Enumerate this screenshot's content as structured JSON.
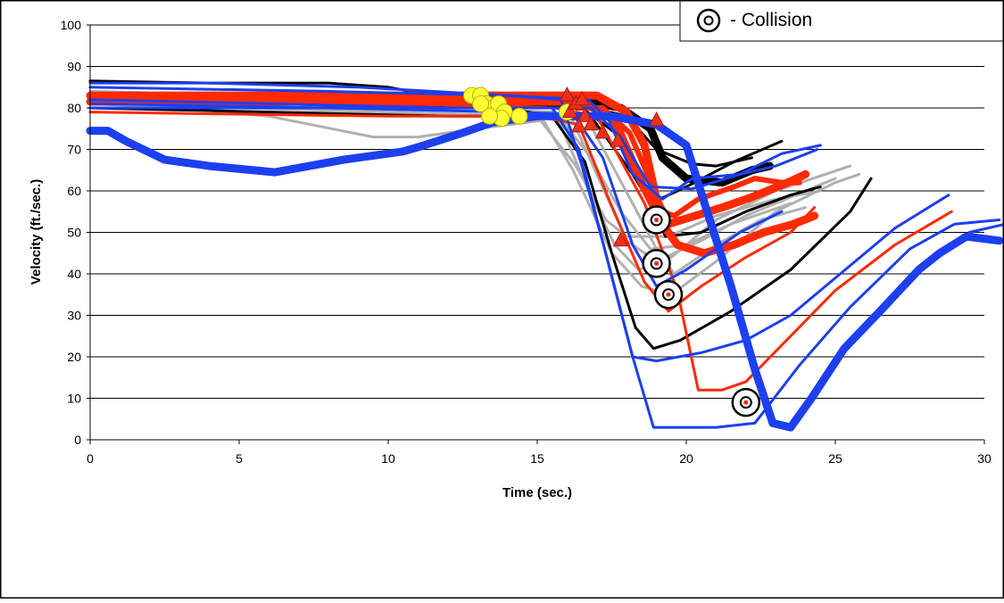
{
  "chart_data": {
    "type": "line",
    "title": "",
    "xlabel": "Time (sec.)",
    "ylabel": "Velocity (ft./sec.)",
    "xlim": [
      0,
      30
    ],
    "ylim": [
      0,
      100
    ],
    "xticks": [
      "0",
      "5",
      "10",
      "15",
      "20",
      "25",
      "30"
    ],
    "yticks": [
      "0",
      "10",
      "20",
      "30",
      "40",
      "50",
      "60",
      "70",
      "80",
      "90",
      "100"
    ],
    "grid": "horizontal",
    "legend": {
      "position": "top-right",
      "entries": [
        {
          "symbol": "bullseye",
          "label": "- Collision"
        }
      ]
    },
    "colors": {
      "blue": "#1c3ff0",
      "red": "#ff2a00",
      "black": "#000000",
      "gray": "#b0b0b0",
      "yellow": "#ffff33",
      "triangle": "#e8321e"
    },
    "series": [
      {
        "color": "gray",
        "width": 3,
        "points": [
          [
            0,
            81
          ],
          [
            3,
            80
          ],
          [
            6,
            78
          ],
          [
            9.5,
            73
          ],
          [
            11,
            73
          ],
          [
            13,
            75
          ],
          [
            15.2,
            77
          ],
          [
            16.2,
            65
          ],
          [
            17.5,
            45
          ],
          [
            18.5,
            37
          ],
          [
            19.5,
            35
          ],
          [
            21,
            43
          ],
          [
            23,
            55
          ],
          [
            25,
            62
          ],
          [
            25.8,
            64
          ]
        ]
      },
      {
        "color": "gray",
        "width": 3,
        "points": [
          [
            0,
            83
          ],
          [
            4,
            82
          ],
          [
            8,
            81
          ],
          [
            12,
            80
          ],
          [
            15.6,
            79
          ],
          [
            16.6,
            62
          ],
          [
            17.6,
            47
          ],
          [
            18.4,
            41
          ],
          [
            19.5,
            44
          ],
          [
            21,
            53
          ],
          [
            23,
            60
          ],
          [
            25.5,
            66
          ]
        ]
      },
      {
        "color": "gray",
        "width": 3,
        "points": [
          [
            0,
            82
          ],
          [
            6,
            81
          ],
          [
            12,
            80
          ],
          [
            16,
            80
          ],
          [
            17,
            64
          ],
          [
            18,
            48
          ],
          [
            19,
            43
          ],
          [
            20.5,
            48
          ],
          [
            22,
            54
          ],
          [
            24,
            60
          ],
          [
            25,
            63
          ]
        ]
      },
      {
        "color": "gray",
        "width": 3,
        "points": [
          [
            0,
            80
          ],
          [
            5,
            80
          ],
          [
            10,
            79
          ],
          [
            15,
            78
          ],
          [
            16.3,
            66
          ],
          [
            17.3,
            53
          ],
          [
            18,
            49
          ],
          [
            19.4,
            49
          ],
          [
            21,
            54
          ],
          [
            23,
            58
          ],
          [
            24.5,
            60
          ]
        ]
      },
      {
        "color": "gray",
        "width": 3,
        "points": [
          [
            0,
            84
          ],
          [
            6,
            83
          ],
          [
            11,
            82
          ],
          [
            15.5,
            80
          ],
          [
            16.8,
            68
          ],
          [
            17.8,
            55
          ],
          [
            18.8,
            46
          ],
          [
            20,
            47
          ],
          [
            21.5,
            52
          ],
          [
            23.5,
            57
          ]
        ]
      },
      {
        "color": "gray",
        "width": 3,
        "points": [
          [
            0,
            81
          ],
          [
            8,
            80
          ],
          [
            14,
            79
          ],
          [
            16.7,
            77
          ],
          [
            18.2,
            57
          ],
          [
            19,
            46
          ],
          [
            19.6,
            40
          ],
          [
            21,
            47
          ],
          [
            22.5,
            53
          ],
          [
            24,
            56
          ]
        ]
      },
      {
        "color": "black",
        "width": 3,
        "points": [
          [
            0,
            86.5
          ],
          [
            4,
            86
          ],
          [
            8,
            86
          ],
          [
            10,
            85
          ],
          [
            15.5,
            78
          ],
          [
            16.6,
            67
          ],
          [
            17.5,
            45
          ],
          [
            18.3,
            27
          ],
          [
            18.9,
            22
          ],
          [
            19.8,
            24
          ],
          [
            21.5,
            31
          ],
          [
            23.5,
            41
          ],
          [
            25.5,
            55
          ],
          [
            26.2,
            63
          ]
        ]
      },
      {
        "color": "black",
        "width": 3,
        "points": [
          [
            0,
            82
          ],
          [
            6,
            81
          ],
          [
            12,
            80
          ],
          [
            16.5,
            80
          ],
          [
            17.8,
            73
          ],
          [
            18.8,
            58
          ],
          [
            19.3,
            49
          ],
          [
            20.5,
            50
          ],
          [
            22,
            55
          ],
          [
            23.5,
            59
          ],
          [
            24.5,
            61
          ]
        ]
      },
      {
        "color": "black",
        "width": 3,
        "points": [
          [
            0,
            80
          ],
          [
            6,
            79
          ],
          [
            12,
            78
          ],
          [
            16.8,
            78
          ],
          [
            18.2,
            64
          ],
          [
            18.8,
            57
          ],
          [
            20,
            61
          ],
          [
            21.6,
            67
          ],
          [
            23.2,
            72
          ]
        ]
      },
      {
        "color": "black",
        "width": 9,
        "points": [
          [
            10.5,
            82.5
          ],
          [
            14,
            82
          ],
          [
            16.5,
            82
          ],
          [
            17.8,
            80
          ],
          [
            18.8,
            75
          ],
          [
            19.2,
            68
          ],
          [
            20,
            63
          ],
          [
            21.2,
            62
          ],
          [
            22.2,
            65
          ],
          [
            22.8,
            66
          ]
        ]
      },
      {
        "color": "black",
        "width": 3,
        "points": [
          [
            10.5,
            80.5
          ],
          [
            14,
            80.5
          ],
          [
            16.6,
            80.5
          ],
          [
            18,
            78
          ],
          [
            19,
            70
          ],
          [
            20.2,
            66.5
          ],
          [
            21,
            66
          ],
          [
            22.2,
            68
          ]
        ]
      },
      {
        "color": "red",
        "width": 3,
        "points": [
          [
            0,
            79
          ],
          [
            5,
            78.5
          ],
          [
            10,
            78
          ],
          [
            15,
            78
          ],
          [
            16.4,
            76
          ],
          [
            17.4,
            58
          ],
          [
            18.6,
            38
          ],
          [
            19.4,
            31
          ],
          [
            20.5,
            37
          ],
          [
            22,
            44
          ],
          [
            23.5,
            50
          ],
          [
            24.3,
            56
          ]
        ]
      },
      {
        "color": "red",
        "width": 3,
        "points": [
          [
            0,
            83
          ],
          [
            5,
            82
          ],
          [
            10,
            81
          ],
          [
            15.6,
            80
          ],
          [
            17,
            78
          ],
          [
            18.6,
            57
          ],
          [
            19.7,
            36
          ],
          [
            20.4,
            12
          ],
          [
            21.2,
            12
          ],
          [
            22,
            14
          ],
          [
            23.5,
            25
          ],
          [
            25,
            36
          ],
          [
            27,
            47
          ],
          [
            28.9,
            55
          ]
        ]
      },
      {
        "color": "red",
        "width": 9,
        "points": [
          [
            0,
            83
          ],
          [
            8,
            83
          ],
          [
            14,
            83
          ],
          [
            17,
            83
          ],
          [
            18,
            79
          ],
          [
            18.6,
            71
          ],
          [
            19,
            58
          ],
          [
            19.4,
            52
          ],
          [
            20.3,
            54
          ],
          [
            21.2,
            56
          ],
          [
            22.2,
            58.5
          ],
          [
            23.4,
            62
          ],
          [
            24,
            64
          ]
        ]
      },
      {
        "color": "red",
        "width": 9,
        "points": [
          [
            0,
            81.5
          ],
          [
            8,
            81.5
          ],
          [
            14,
            81.5
          ],
          [
            16.5,
            81.5
          ],
          [
            17.6,
            77
          ],
          [
            18.5,
            62
          ],
          [
            19.2,
            52
          ],
          [
            19.7,
            47
          ],
          [
            20.6,
            45
          ],
          [
            21.6,
            47
          ],
          [
            22.6,
            50
          ],
          [
            23.6,
            52
          ],
          [
            24.3,
            54
          ]
        ]
      },
      {
        "color": "red",
        "width": 6,
        "points": [
          [
            16,
            80
          ],
          [
            17.2,
            80
          ],
          [
            18.1,
            74
          ],
          [
            18.7,
            64
          ],
          [
            19.2,
            55
          ],
          [
            19.6,
            54
          ],
          [
            20.4,
            58
          ],
          [
            21.6,
            61
          ],
          [
            22.3,
            63
          ],
          [
            23.2,
            62
          ],
          [
            23.8,
            62
          ]
        ]
      },
      {
        "color": "blue",
        "width": 3,
        "points": [
          [
            0,
            86
          ],
          [
            4,
            86
          ],
          [
            9,
            85
          ],
          [
            14,
            83
          ],
          [
            15.8,
            82
          ],
          [
            16.5,
            66
          ],
          [
            17.3,
            45
          ],
          [
            18.2,
            20
          ],
          [
            18.9,
            3
          ],
          [
            19.6,
            3
          ],
          [
            21,
            3
          ],
          [
            22.3,
            4
          ],
          [
            23.8,
            18
          ],
          [
            25.5,
            32
          ],
          [
            27.5,
            46
          ],
          [
            29,
            52
          ],
          [
            30.5,
            53
          ]
        ]
      },
      {
        "color": "blue",
        "width": 3,
        "points": [
          [
            0,
            82
          ],
          [
            6,
            81
          ],
          [
            12,
            80
          ],
          [
            15.5,
            80
          ],
          [
            16.4,
            70
          ],
          [
            17.4,
            42
          ],
          [
            18.2,
            20
          ],
          [
            19,
            19
          ],
          [
            20.5,
            21
          ],
          [
            22,
            24
          ],
          [
            23.5,
            30
          ],
          [
            25,
            39
          ],
          [
            27,
            51
          ],
          [
            28.8,
            59
          ]
        ]
      },
      {
        "color": "blue",
        "width": 3,
        "points": [
          [
            0,
            80
          ],
          [
            8,
            80
          ],
          [
            14,
            79
          ],
          [
            16.2,
            78.5
          ],
          [
            17.2,
            68
          ],
          [
            18.2,
            47
          ],
          [
            19,
            37
          ],
          [
            20,
            41
          ],
          [
            21.8,
            50
          ],
          [
            23.2,
            55
          ]
        ]
      },
      {
        "color": "blue",
        "width": 3,
        "points": [
          [
            0,
            85
          ],
          [
            8,
            84
          ],
          [
            14,
            83
          ],
          [
            16.7,
            82
          ],
          [
            17.4,
            77
          ],
          [
            18.2,
            64
          ],
          [
            19.2,
            58
          ],
          [
            20.2,
            63
          ],
          [
            21.8,
            64
          ],
          [
            23.2,
            69
          ],
          [
            24.5,
            71
          ]
        ]
      },
      {
        "color": "blue",
        "width": 3,
        "points": [
          [
            0,
            81
          ],
          [
            8,
            80
          ],
          [
            14,
            80
          ],
          [
            16.8,
            80
          ],
          [
            17.8,
            73
          ],
          [
            18.8,
            61
          ],
          [
            20.2,
            60.5
          ],
          [
            21.8,
            64
          ],
          [
            23,
            66
          ],
          [
            24.4,
            70
          ]
        ]
      },
      {
        "color": "blue",
        "width": 9,
        "points": [
          [
            0,
            74.5
          ],
          [
            0.6,
            74.5
          ],
          [
            1.2,
            72
          ],
          [
            2.5,
            67.5
          ],
          [
            4,
            66
          ],
          [
            6.2,
            64.5
          ],
          [
            8.5,
            67.5
          ],
          [
            10.5,
            69.5
          ],
          [
            11.2,
            71
          ],
          [
            12.5,
            74
          ],
          [
            13.5,
            76.5
          ],
          [
            15,
            78
          ],
          [
            17.5,
            78
          ],
          [
            19,
            76
          ],
          [
            20,
            71
          ],
          [
            20.7,
            55
          ],
          [
            21.5,
            37
          ],
          [
            22.3,
            17
          ],
          [
            22.9,
            4
          ],
          [
            23.5,
            3
          ],
          [
            24.2,
            10
          ],
          [
            25.3,
            22
          ],
          [
            26.5,
            31
          ],
          [
            27.8,
            41
          ],
          [
            28.5,
            45
          ],
          [
            29.4,
            49
          ],
          [
            30.5,
            48
          ]
        ]
      },
      {
        "color": "blue",
        "width": 3,
        "points": [
          [
            29.5,
            50
          ],
          [
            30.7,
            52
          ]
        ]
      }
    ],
    "decision_points_yellow": [
      [
        12.8,
        83
      ],
      [
        13.1,
        83
      ],
      [
        13.3,
        81
      ],
      [
        13.5,
        80
      ],
      [
        13.7,
        81
      ],
      [
        13.9,
        79
      ],
      [
        14.4,
        78
      ],
      [
        13.8,
        77.5
      ],
      [
        13.4,
        78
      ],
      [
        13.1,
        81
      ],
      [
        16,
        79
      ]
    ],
    "decision_points_triangles": [
      [
        16,
        83
      ],
      [
        16.1,
        79
      ],
      [
        16.3,
        81
      ],
      [
        16.5,
        82
      ],
      [
        16.6,
        78
      ],
      [
        16.8,
        76
      ],
      [
        17.2,
        74
      ],
      [
        17.7,
        72
      ],
      [
        17.8,
        48
      ],
      [
        19,
        77
      ],
      [
        16.4,
        75.5
      ]
    ],
    "collisions": [
      [
        19,
        53
      ],
      [
        19,
        42.5
      ],
      [
        19.4,
        35
      ],
      [
        22,
        9
      ]
    ]
  }
}
